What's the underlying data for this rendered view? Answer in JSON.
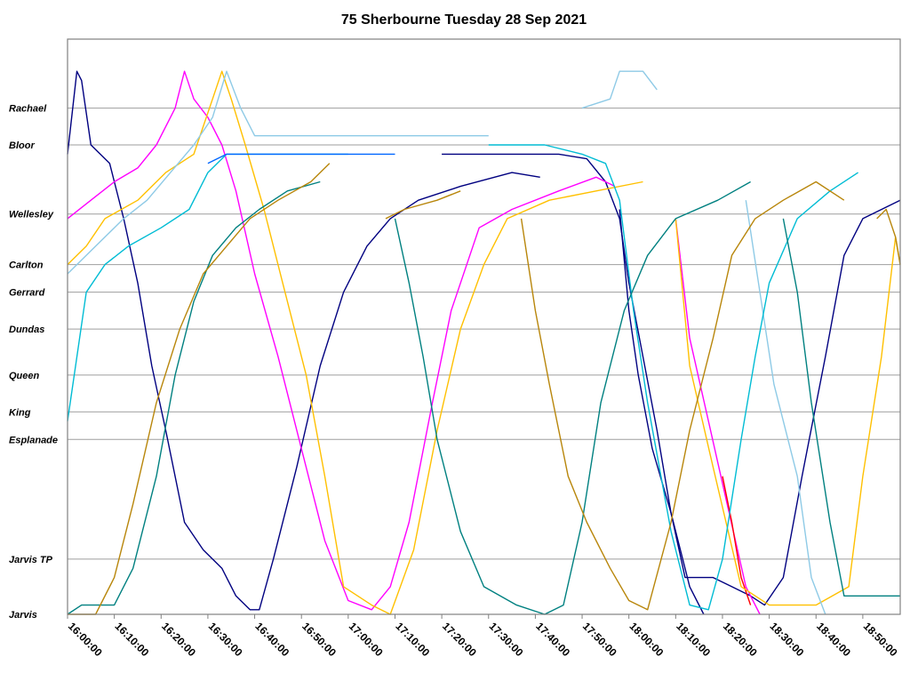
{
  "chart_data": {
    "type": "line",
    "title": "75 Sherbourne Tuesday 28 Sep 2021",
    "xlabel": "",
    "ylabel": "",
    "x_ticks": [
      "16:00:00",
      "16:10:00",
      "16:20:00",
      "16:30:00",
      "16:40:00",
      "16:50:00",
      "17:00:00",
      "17:10:00",
      "17:20:00",
      "17:30:00",
      "17:40:00",
      "17:50:00",
      "18:00:00",
      "18:10:00",
      "18:20:00",
      "18:30:00",
      "18:40:00",
      "18:50:00"
    ],
    "xlim": [
      "16:00:00",
      "18:58:00"
    ],
    "stops": [
      {
        "name": "Jarvis",
        "level": 0
      },
      {
        "name": "Jarvis TP",
        "level": 0.12
      },
      {
        "name": "Esplanade",
        "level": 0.38
      },
      {
        "name": "King",
        "level": 0.44
      },
      {
        "name": "Queen",
        "level": 0.52
      },
      {
        "name": "Dundas",
        "level": 0.62
      },
      {
        "name": "Gerrard",
        "level": 0.7
      },
      {
        "name": "Carlton",
        "level": 0.76
      },
      {
        "name": "Wellesley",
        "level": 0.87
      },
      {
        "name": "Bloor",
        "level": 1.02
      },
      {
        "name": "Rachael",
        "level": 1.1
      }
    ],
    "ylim": [
      0,
      1.25
    ],
    "grid": true,
    "legend": "none",
    "series": [
      {
        "color": "#000080",
        "points": [
          [
            "16:00:00",
            1.0
          ],
          [
            "16:02:00",
            1.18
          ],
          [
            "16:03:00",
            1.16
          ],
          [
            "16:05:00",
            1.02
          ],
          [
            "16:09:00",
            0.98
          ],
          [
            "16:12:00",
            0.86
          ],
          [
            "16:15:00",
            0.72
          ],
          [
            "16:18:00",
            0.54
          ],
          [
            "16:21:00",
            0.4
          ],
          [
            "16:25:00",
            0.2
          ],
          [
            "16:29:00",
            0.14
          ],
          [
            "16:33:00",
            0.1
          ],
          [
            "16:36:00",
            0.04
          ],
          [
            "16:39:00",
            0.01
          ],
          [
            "16:41:00",
            0.01
          ],
          [
            "16:44:00",
            0.12
          ],
          [
            "16:49:00",
            0.32
          ],
          [
            "16:54:00",
            0.54
          ],
          [
            "16:59:00",
            0.7
          ],
          [
            "17:04:00",
            0.8
          ],
          [
            "17:09:00",
            0.86
          ],
          [
            "17:15:00",
            0.9
          ],
          [
            "17:24:00",
            0.93
          ],
          [
            "17:35:00",
            0.96
          ],
          [
            "17:41:00",
            0.95
          ]
        ]
      },
      {
        "color": "#000080",
        "points": [
          [
            "17:20:00",
            1.0
          ],
          [
            "17:45:00",
            1.0
          ],
          [
            "17:51:00",
            0.99
          ],
          [
            "17:55:00",
            0.94
          ],
          [
            "17:58:00",
            0.86
          ],
          [
            "18:00:00",
            0.72
          ],
          [
            "18:03:00",
            0.56
          ],
          [
            "18:06:00",
            0.4
          ],
          [
            "18:09:00",
            0.22
          ],
          [
            "18:12:00",
            0.08
          ],
          [
            "18:18:00",
            0.08
          ],
          [
            "18:22:00",
            0.06
          ],
          [
            "18:26:00",
            0.04
          ],
          [
            "18:29:00",
            0.02
          ],
          [
            "18:33:00",
            0.08
          ],
          [
            "18:37:00",
            0.3
          ],
          [
            "18:42:00",
            0.56
          ],
          [
            "18:46:00",
            0.78
          ],
          [
            "18:50:00",
            0.86
          ],
          [
            "18:58:00",
            0.9
          ]
        ]
      },
      {
        "color": "#000080",
        "points": [
          [
            "17:58:00",
            0.88
          ],
          [
            "18:00:00",
            0.66
          ],
          [
            "18:02:00",
            0.52
          ],
          [
            "18:05:00",
            0.36
          ],
          [
            "18:09:00",
            0.22
          ],
          [
            "18:13:00",
            0.06
          ],
          [
            "18:16:00",
            0.0
          ]
        ]
      },
      {
        "color": "#ff00ff",
        "points": [
          [
            "16:00:00",
            0.86
          ],
          [
            "16:05:00",
            0.9
          ],
          [
            "16:10:00",
            0.94
          ],
          [
            "16:15:00",
            0.97
          ],
          [
            "16:19:00",
            1.02
          ],
          [
            "16:23:00",
            1.1
          ],
          [
            "16:25:00",
            1.18
          ],
          [
            "16:27:00",
            1.12
          ],
          [
            "16:30:00",
            1.08
          ],
          [
            "16:33:00",
            1.02
          ],
          [
            "16:36:00",
            0.92
          ],
          [
            "16:40:00",
            0.74
          ],
          [
            "16:45:00",
            0.56
          ],
          [
            "16:50:00",
            0.36
          ],
          [
            "16:55:00",
            0.16
          ],
          [
            "17:00:00",
            0.03
          ],
          [
            "17:05:00",
            0.01
          ],
          [
            "17:09:00",
            0.06
          ],
          [
            "17:13:00",
            0.2
          ],
          [
            "17:18:00",
            0.46
          ],
          [
            "17:22:00",
            0.66
          ],
          [
            "17:28:00",
            0.84
          ],
          [
            "17:35:00",
            0.88
          ],
          [
            "17:45:00",
            0.92
          ],
          [
            "17:53:00",
            0.95
          ],
          [
            "17:57:00",
            0.93
          ]
        ]
      },
      {
        "color": "#ff00ff",
        "points": [
          [
            "18:10:00",
            0.86
          ],
          [
            "18:13:00",
            0.6
          ],
          [
            "18:17:00",
            0.42
          ],
          [
            "18:21:00",
            0.24
          ],
          [
            "18:25:00",
            0.06
          ],
          [
            "18:28:00",
            0.0
          ]
        ]
      },
      {
        "color": "#ff0000",
        "points": [
          [
            "18:20:00",
            0.3
          ],
          [
            "18:22:00",
            0.2
          ],
          [
            "18:24:00",
            0.08
          ],
          [
            "18:26:00",
            0.02
          ]
        ]
      },
      {
        "color": "#ffc000",
        "points": [
          [
            "16:00:00",
            0.76
          ],
          [
            "16:04:00",
            0.8
          ],
          [
            "16:08:00",
            0.86
          ],
          [
            "16:15:00",
            0.9
          ],
          [
            "16:21:00",
            0.96
          ],
          [
            "16:27:00",
            1.0
          ],
          [
            "16:31:00",
            1.12
          ],
          [
            "16:33:00",
            1.18
          ],
          [
            "16:35:00",
            1.12
          ],
          [
            "16:38:00",
            1.02
          ],
          [
            "16:42:00",
            0.88
          ],
          [
            "16:46:00",
            0.72
          ],
          [
            "16:51:00",
            0.52
          ],
          [
            "16:55:00",
            0.3
          ],
          [
            "16:59:00",
            0.06
          ],
          [
            "17:05:00",
            0.02
          ],
          [
            "17:09:00",
            0.0
          ],
          [
            "17:14:00",
            0.14
          ],
          [
            "17:19:00",
            0.4
          ],
          [
            "17:24:00",
            0.62
          ],
          [
            "17:29:00",
            0.76
          ],
          [
            "17:34:00",
            0.86
          ],
          [
            "17:43:00",
            0.9
          ],
          [
            "17:53:00",
            0.92
          ],
          [
            "18:03:00",
            0.94
          ]
        ]
      },
      {
        "color": "#ffc000",
        "points": [
          [
            "18:10:00",
            0.86
          ],
          [
            "18:13:00",
            0.54
          ],
          [
            "18:18:00",
            0.32
          ],
          [
            "18:24:00",
            0.06
          ],
          [
            "18:30:00",
            0.02
          ],
          [
            "18:40:00",
            0.02
          ],
          [
            "18:47:00",
            0.06
          ],
          [
            "18:50:00",
            0.3
          ],
          [
            "18:54:00",
            0.56
          ],
          [
            "18:57:00",
            0.82
          ],
          [
            "18:58:00",
            0.76
          ]
        ]
      },
      {
        "color": "#8ecae6",
        "points": [
          [
            "16:00:00",
            0.74
          ],
          [
            "16:06:00",
            0.8
          ],
          [
            "16:12:00",
            0.86
          ],
          [
            "16:17:00",
            0.9
          ],
          [
            "16:22:00",
            0.96
          ],
          [
            "16:27:00",
            1.02
          ],
          [
            "16:31:00",
            1.08
          ],
          [
            "16:34:00",
            1.18
          ],
          [
            "16:37:00",
            1.1
          ],
          [
            "16:40:00",
            1.04
          ],
          [
            "16:56:00",
            1.04
          ],
          [
            "17:30:00",
            1.04
          ]
        ]
      },
      {
        "color": "#8ecae6",
        "points": [
          [
            "17:50:00",
            1.1
          ],
          [
            "17:56:00",
            1.12
          ],
          [
            "17:58:00",
            1.18
          ],
          [
            "18:03:00",
            1.18
          ],
          [
            "18:06:00",
            1.14
          ]
        ]
      },
      {
        "color": "#8ecae6",
        "points": [
          [
            "18:25:00",
            0.9
          ],
          [
            "18:28:00",
            0.7
          ],
          [
            "18:31:00",
            0.5
          ],
          [
            "18:36:00",
            0.3
          ],
          [
            "18:39:00",
            0.08
          ],
          [
            "18:42:00",
            0.0
          ]
        ]
      },
      {
        "color": "#00bcd4",
        "points": [
          [
            "16:00:00",
            0.42
          ],
          [
            "16:04:00",
            0.7
          ],
          [
            "16:08:00",
            0.76
          ],
          [
            "16:13:00",
            0.8
          ],
          [
            "16:20:00",
            0.84
          ],
          [
            "16:26:00",
            0.88
          ],
          [
            "16:30:00",
            0.96
          ],
          [
            "16:34:00",
            1.0
          ],
          [
            "16:41:00",
            1.0
          ],
          [
            "17:00:00",
            1.0
          ]
        ]
      },
      {
        "color": "#00bcd4",
        "points": [
          [
            "17:30:00",
            1.02
          ],
          [
            "17:42:00",
            1.02
          ],
          [
            "17:50:00",
            1.0
          ],
          [
            "17:55:00",
            0.98
          ],
          [
            "17:58:00",
            0.9
          ],
          [
            "18:01:00",
            0.66
          ],
          [
            "18:04:00",
            0.46
          ],
          [
            "18:09:00",
            0.18
          ],
          [
            "18:13:00",
            0.02
          ],
          [
            "18:17:00",
            0.01
          ],
          [
            "18:20:00",
            0.12
          ],
          [
            "18:24:00",
            0.38
          ],
          [
            "18:27:00",
            0.56
          ],
          [
            "18:30:00",
            0.72
          ],
          [
            "18:36:00",
            0.86
          ],
          [
            "18:43:00",
            0.92
          ],
          [
            "18:49:00",
            0.96
          ]
        ]
      },
      {
        "color": "#0066ff",
        "points": [
          [
            "16:30:00",
            0.98
          ],
          [
            "16:34:00",
            1.0
          ],
          [
            "17:00:00",
            1.0
          ],
          [
            "17:10:00",
            1.0
          ]
        ]
      },
      {
        "color": "#008080",
        "points": [
          [
            "16:00:00",
            0.0
          ],
          [
            "16:03:00",
            0.02
          ],
          [
            "16:10:00",
            0.02
          ],
          [
            "16:14:00",
            0.1
          ],
          [
            "16:19:00",
            0.3
          ],
          [
            "16:23:00",
            0.52
          ],
          [
            "16:27:00",
            0.68
          ],
          [
            "16:31:00",
            0.78
          ],
          [
            "16:36:00",
            0.84
          ],
          [
            "16:41:00",
            0.88
          ],
          [
            "16:47:00",
            0.92
          ],
          [
            "16:54:00",
            0.94
          ]
        ]
      },
      {
        "color": "#008080",
        "points": [
          [
            "17:10:00",
            0.86
          ],
          [
            "17:13:00",
            0.72
          ],
          [
            "17:16:00",
            0.56
          ],
          [
            "17:19:00",
            0.38
          ],
          [
            "17:24:00",
            0.18
          ],
          [
            "17:29:00",
            0.06
          ],
          [
            "17:36:00",
            0.02
          ],
          [
            "17:42:00",
            0.0
          ],
          [
            "17:46:00",
            0.02
          ],
          [
            "17:50:00",
            0.2
          ],
          [
            "17:54:00",
            0.46
          ],
          [
            "17:59:00",
            0.66
          ],
          [
            "18:04:00",
            0.78
          ],
          [
            "18:10:00",
            0.86
          ],
          [
            "18:19:00",
            0.9
          ],
          [
            "18:26:00",
            0.94
          ]
        ]
      },
      {
        "color": "#008080",
        "points": [
          [
            "18:33:00",
            0.86
          ],
          [
            "18:36:00",
            0.7
          ],
          [
            "18:39:00",
            0.46
          ],
          [
            "18:43:00",
            0.2
          ],
          [
            "18:46:00",
            0.04
          ],
          [
            "18:58:00",
            0.04
          ]
        ]
      },
      {
        "color": "#b8860b",
        "points": [
          [
            "16:00:00",
            0.0
          ],
          [
            "16:06:00",
            0.0
          ],
          [
            "16:10:00",
            0.08
          ],
          [
            "16:14:00",
            0.24
          ],
          [
            "16:19:00",
            0.46
          ],
          [
            "16:24:00",
            0.62
          ],
          [
            "16:29:00",
            0.74
          ],
          [
            "16:34:00",
            0.8
          ],
          [
            "16:39:00",
            0.86
          ],
          [
            "16:45:00",
            0.9
          ],
          [
            "16:52:00",
            0.94
          ],
          [
            "16:56:00",
            0.98
          ]
        ]
      },
      {
        "color": "#b8860b",
        "points": [
          [
            "17:08:00",
            0.86
          ],
          [
            "17:12:00",
            0.88
          ],
          [
            "17:19:00",
            0.9
          ],
          [
            "17:24:00",
            0.92
          ]
        ]
      },
      {
        "color": "#b8860b",
        "points": [
          [
            "17:37:00",
            0.86
          ],
          [
            "17:40:00",
            0.66
          ],
          [
            "17:43:00",
            0.5
          ],
          [
            "17:47:00",
            0.3
          ],
          [
            "17:51:00",
            0.2
          ],
          [
            "17:56:00",
            0.1
          ],
          [
            "18:00:00",
            0.03
          ],
          [
            "18:04:00",
            0.01
          ],
          [
            "18:09:00",
            0.2
          ],
          [
            "18:13:00",
            0.4
          ],
          [
            "18:18:00",
            0.6
          ],
          [
            "18:22:00",
            0.78
          ],
          [
            "18:27:00",
            0.86
          ],
          [
            "18:33:00",
            0.9
          ],
          [
            "18:40:00",
            0.94
          ],
          [
            "18:46:00",
            0.9
          ]
        ]
      },
      {
        "color": "#b8860b",
        "points": [
          [
            "18:53:00",
            0.86
          ],
          [
            "18:55:00",
            0.88
          ],
          [
            "18:57:00",
            0.82
          ],
          [
            "18:58:00",
            0.76
          ]
        ]
      }
    ]
  }
}
